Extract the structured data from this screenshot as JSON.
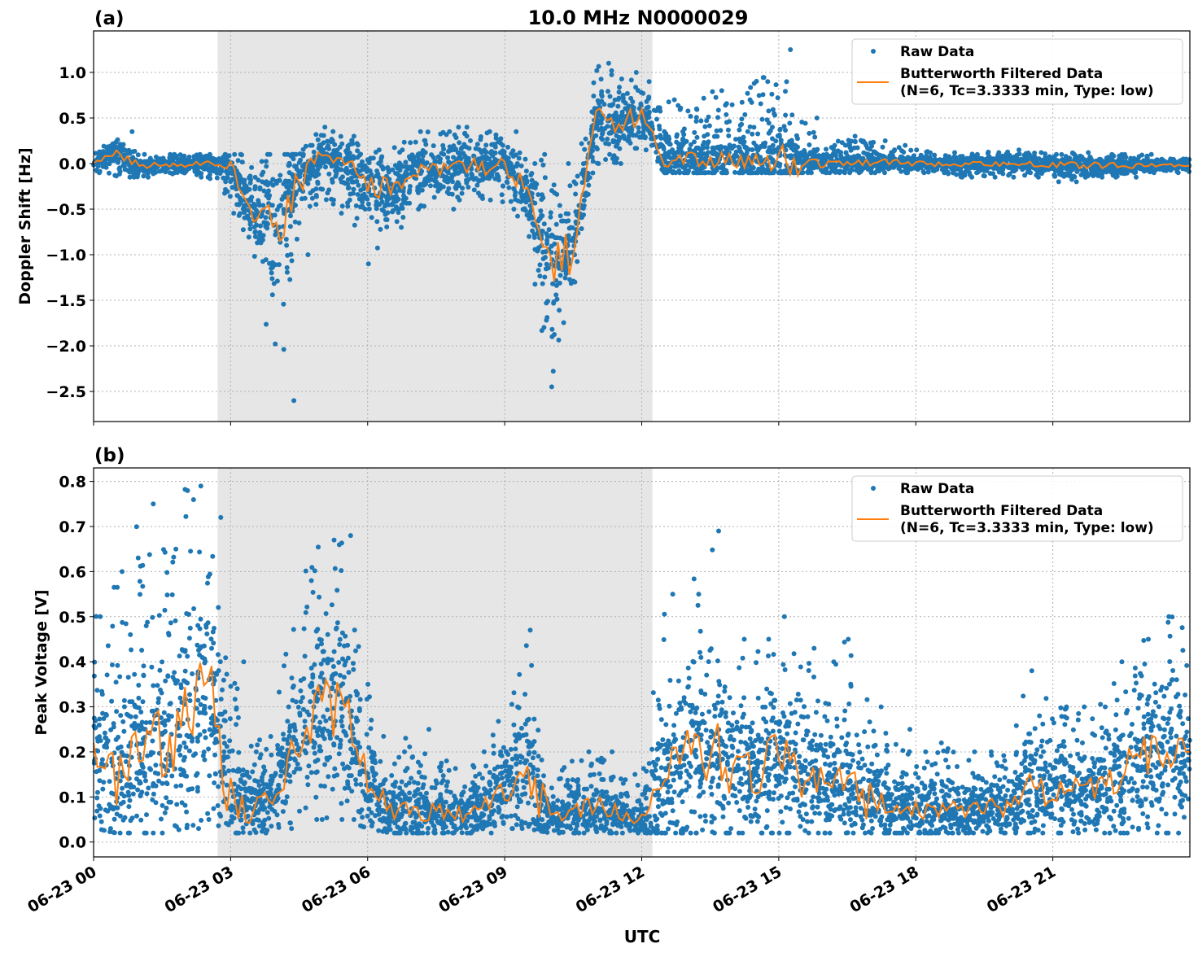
{
  "title": "10.0 MHz N0000029",
  "xlabel": "UTC",
  "x_tick_labels": [
    "06-23 00",
    "06-23 03",
    "06-23 06",
    "06-23 09",
    "06-23 12",
    "06-23 15",
    "06-23 18",
    "06-23 21"
  ],
  "legend": {
    "raw": "Raw Data",
    "filtered_line1": "Butterworth Filtered Data",
    "filtered_line2": "(N=6, Tc=3.3333 min, Type: low)",
    "placement": "upper-right"
  },
  "colors": {
    "raw": "#1f77b4",
    "filtered": "#ff7f0e",
    "shade": "#e6e6e6"
  },
  "chart_data": [
    {
      "type": "scatter+line",
      "panel_label": "(a)",
      "ylabel": "Doppler Shift [Hz]",
      "xlim": [
        "06-23 00:00",
        "06-24 00:00"
      ],
      "ylim": [
        -2.83,
        1.455
      ],
      "y_ticks": [
        1.0,
        0.5,
        0.0,
        -0.5,
        -1.0,
        -1.5,
        -2.0,
        -2.5
      ],
      "y_tick_labels": [
        "1.0",
        "0.5",
        "0.0",
        "−0.5",
        "−1.0",
        "−1.5",
        "−2.0",
        "−2.5"
      ],
      "grid": true,
      "shaded_span": [
        "02:43",
        "12:14"
      ],
      "x": [
        "00:00",
        "00:30",
        "01:00",
        "01:30",
        "02:00",
        "02:30",
        "03:00",
        "03:30",
        "04:00",
        "04:30",
        "05:00",
        "05:30",
        "06:00",
        "06:30",
        "07:00",
        "07:30",
        "08:00",
        "08:30",
        "09:00",
        "09:30",
        "10:00",
        "10:30",
        "11:00",
        "11:30",
        "12:00",
        "12:30",
        "13:00",
        "13:30",
        "14:00",
        "14:30",
        "15:00",
        "15:30",
        "16:00",
        "16:30",
        "17:00",
        "17:30",
        "18:00",
        "18:30",
        "19:00",
        "19:30",
        "20:00",
        "20:30",
        "21:00",
        "21:30",
        "22:00",
        "22:30",
        "23:00",
        "23:30",
        "24:00"
      ],
      "filtered": [
        0.0,
        0.12,
        -0.03,
        -0.01,
        -0.02,
        0.0,
        -0.05,
        -0.5,
        -0.6,
        -0.2,
        0.05,
        0.0,
        -0.2,
        -0.3,
        -0.1,
        -0.1,
        0.0,
        -0.05,
        0.0,
        -0.3,
        -1.1,
        -0.9,
        0.5,
        0.4,
        0.55,
        0.05,
        0.05,
        0.05,
        0.05,
        0.05,
        0.05,
        0.02,
        0.0,
        0.02,
        0.02,
        0.01,
        0.0,
        0.0,
        0.0,
        0.0,
        0.0,
        0.0,
        -0.02,
        -0.02,
        -0.02,
        -0.02,
        -0.02,
        -0.02,
        -0.02
      ],
      "raw_min": [
        -0.1,
        -0.15,
        -0.15,
        -0.1,
        -0.15,
        -0.15,
        -0.5,
        -1.2,
        -2.6,
        -1.0,
        -0.4,
        -0.6,
        -1.1,
        -0.7,
        -0.5,
        -0.5,
        -0.4,
        -0.4,
        -0.5,
        -0.8,
        -2.45,
        -1.3,
        0.0,
        0.0,
        0.2,
        -0.1,
        -0.1,
        -0.1,
        -0.1,
        -0.1,
        -0.1,
        -0.1,
        -0.1,
        -0.1,
        -0.1,
        -0.1,
        -0.1,
        -0.1,
        -0.15,
        -0.15,
        -0.15,
        -0.15,
        -0.2,
        -0.2,
        -0.15,
        -0.15,
        -0.1,
        -0.1,
        -0.1
      ],
      "raw_max": [
        0.1,
        0.35,
        0.1,
        0.1,
        0.1,
        0.1,
        0.1,
        0.1,
        0.1,
        0.1,
        0.4,
        0.3,
        0.15,
        0.15,
        0.35,
        0.35,
        0.4,
        0.35,
        0.35,
        0.1,
        0.0,
        -0.2,
        1.1,
        1.0,
        0.9,
        0.7,
        0.6,
        0.8,
        0.7,
        0.9,
        1.25,
        0.5,
        0.2,
        0.3,
        0.25,
        0.2,
        0.15,
        0.12,
        0.1,
        0.12,
        0.15,
        0.12,
        0.1,
        0.12,
        0.1,
        0.1,
        0.1,
        0.05,
        0.05
      ]
    },
    {
      "type": "scatter+line",
      "panel_label": "(b)",
      "ylabel": "Peak Voltage [V]",
      "xlim": [
        "06-23 00:00",
        "06-24 00:00"
      ],
      "ylim": [
        -0.033,
        0.83
      ],
      "y_ticks": [
        0.8,
        0.7,
        0.6,
        0.5,
        0.4,
        0.3,
        0.2,
        0.1,
        0.0
      ],
      "y_tick_labels": [
        "0.8",
        "0.7",
        "0.6",
        "0.5",
        "0.4",
        "0.3",
        "0.2",
        "0.1",
        "0.0"
      ],
      "grid": true,
      "shaded_span": [
        "02:43",
        "12:14"
      ],
      "x": [
        "00:00",
        "00:30",
        "01:00",
        "01:30",
        "02:00",
        "02:30",
        "03:00",
        "03:30",
        "04:00",
        "04:30",
        "05:00",
        "05:30",
        "06:00",
        "06:30",
        "07:00",
        "07:30",
        "08:00",
        "08:30",
        "09:00",
        "09:30",
        "10:00",
        "10:30",
        "11:00",
        "11:30",
        "12:00",
        "12:30",
        "13:00",
        "13:30",
        "14:00",
        "14:30",
        "15:00",
        "15:30",
        "16:00",
        "16:30",
        "17:00",
        "17:30",
        "18:00",
        "18:30",
        "19:00",
        "19:30",
        "20:00",
        "20:30",
        "21:00",
        "21:30",
        "22:00",
        "22:30",
        "23:00",
        "23:30",
        "24:00"
      ],
      "filtered": [
        0.2,
        0.15,
        0.2,
        0.2,
        0.25,
        0.35,
        0.1,
        0.08,
        0.1,
        0.25,
        0.3,
        0.3,
        0.12,
        0.07,
        0.07,
        0.07,
        0.06,
        0.08,
        0.12,
        0.15,
        0.05,
        0.07,
        0.08,
        0.06,
        0.05,
        0.15,
        0.2,
        0.2,
        0.15,
        0.15,
        0.2,
        0.15,
        0.15,
        0.12,
        0.1,
        0.08,
        0.07,
        0.08,
        0.07,
        0.08,
        0.07,
        0.12,
        0.12,
        0.12,
        0.12,
        0.15,
        0.2,
        0.2,
        0.2
      ],
      "raw_min": [
        0.03,
        0.02,
        0.02,
        0.02,
        0.03,
        0.05,
        0.02,
        0.02,
        0.03,
        0.05,
        0.05,
        0.05,
        0.03,
        0.02,
        0.02,
        0.02,
        0.02,
        0.02,
        0.03,
        0.03,
        0.02,
        0.02,
        0.02,
        0.02,
        0.02,
        0.02,
        0.02,
        0.02,
        0.02,
        0.02,
        0.02,
        0.02,
        0.02,
        0.02,
        0.02,
        0.02,
        0.02,
        0.02,
        0.02,
        0.02,
        0.02,
        0.02,
        0.02,
        0.02,
        0.02,
        0.02,
        0.02,
        0.02,
        0.02
      ],
      "raw_max": [
        0.5,
        0.6,
        0.75,
        0.65,
        0.79,
        0.72,
        0.4,
        0.2,
        0.3,
        0.58,
        0.67,
        0.68,
        0.35,
        0.2,
        0.25,
        0.18,
        0.17,
        0.2,
        0.3,
        0.47,
        0.12,
        0.2,
        0.2,
        0.15,
        0.15,
        0.55,
        0.55,
        0.69,
        0.45,
        0.45,
        0.5,
        0.43,
        0.4,
        0.45,
        0.3,
        0.25,
        0.2,
        0.22,
        0.2,
        0.2,
        0.2,
        0.38,
        0.3,
        0.3,
        0.3,
        0.4,
        0.45,
        0.5,
        0.5
      ]
    }
  ]
}
